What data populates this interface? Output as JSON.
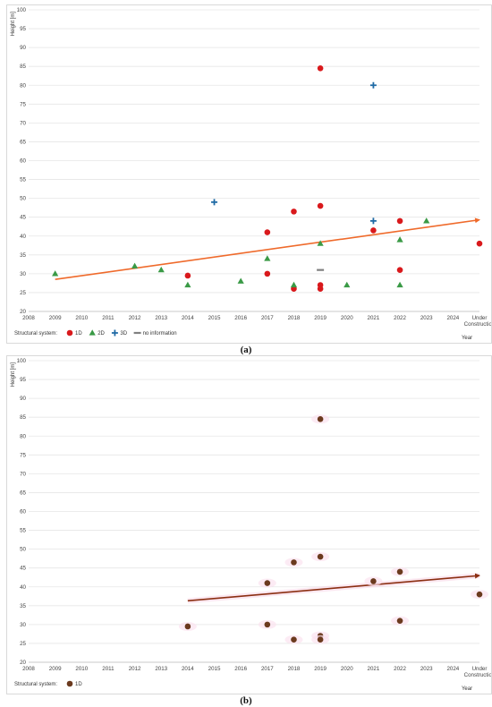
{
  "captions": [
    "(a)",
    "(b)"
  ],
  "colors": {
    "1D": "#d9191c",
    "2D": "#3a9a46",
    "3D": "#1f6aa5",
    "no information": "#808080",
    "trend_a": "#ef6a2b",
    "1D_b": "#6b3a1e",
    "trend_b": "#8b2f12",
    "grid": "#e6e6e6"
  },
  "chart_data": [
    {
      "type": "scatter",
      "panel": "a",
      "ylabel": "Height [m]",
      "xlabel": "Year",
      "categories": [
        "2008",
        "2009",
        "2010",
        "2011",
        "2012",
        "2013",
        "2014",
        "2015",
        "2016",
        "2017",
        "2018",
        "2019",
        "2020",
        "2021",
        "2022",
        "2023",
        "2024",
        "Under Construction"
      ],
      "ylim": [
        20,
        100
      ],
      "yticks": [
        20,
        25,
        30,
        35,
        40,
        45,
        50,
        55,
        60,
        65,
        70,
        75,
        80,
        85,
        90,
        95,
        100
      ],
      "legend_title": "Structural system:",
      "legend_placement": "bottom-left",
      "grid": true,
      "series": [
        {
          "name": "1D",
          "marker": "circle",
          "points": [
            [
              "2014",
              29.5
            ],
            [
              "2017",
              41
            ],
            [
              "2017",
              30
            ],
            [
              "2018",
              46.5
            ],
            [
              "2018",
              26
            ],
            [
              "2019",
              84.5
            ],
            [
              "2019",
              48
            ],
            [
              "2019",
              27
            ],
            [
              "2019",
              26
            ],
            [
              "2021",
              41.5
            ],
            [
              "2022",
              44
            ],
            [
              "2022",
              31
            ],
            [
              "Under Construction",
              38
            ]
          ]
        },
        {
          "name": "2D",
          "marker": "triangle",
          "points": [
            [
              "2009",
              30
            ],
            [
              "2012",
              32
            ],
            [
              "2013",
              31
            ],
            [
              "2014",
              27
            ],
            [
              "2016",
              28
            ],
            [
              "2017",
              34
            ],
            [
              "2018",
              27
            ],
            [
              "2019",
              38
            ],
            [
              "2020",
              27
            ],
            [
              "2022",
              39
            ],
            [
              "2022",
              27
            ],
            [
              "2023",
              44
            ]
          ]
        },
        {
          "name": "3D",
          "marker": "plus",
          "points": [
            [
              "2015",
              49
            ],
            [
              "2021",
              80
            ],
            [
              "2021",
              44
            ]
          ]
        },
        {
          "name": "no information",
          "marker": "dash",
          "points": [
            [
              "2019",
              31
            ]
          ]
        }
      ],
      "trend": {
        "from": [
          "2009",
          28.5
        ],
        "to": [
          "Under Construction",
          44.3
        ]
      }
    },
    {
      "type": "scatter",
      "panel": "b",
      "ylabel": "Height [m]",
      "xlabel": "Year",
      "categories": [
        "2008",
        "2009",
        "2010",
        "2011",
        "2012",
        "2013",
        "2014",
        "2015",
        "2016",
        "2017",
        "2018",
        "2019",
        "2020",
        "2021",
        "2022",
        "2023",
        "2024",
        "Under Construction"
      ],
      "ylim": [
        20,
        100
      ],
      "yticks": [
        20,
        25,
        30,
        35,
        40,
        45,
        50,
        55,
        60,
        65,
        70,
        75,
        80,
        85,
        90,
        95,
        100
      ],
      "legend_title": "Structural system:",
      "legend_placement": "bottom-left",
      "grid": true,
      "series": [
        {
          "name": "1D",
          "marker": "circle",
          "points": [
            [
              "2014",
              29.5
            ],
            [
              "2017",
              41
            ],
            [
              "2017",
              30
            ],
            [
              "2018",
              46.5
            ],
            [
              "2018",
              26
            ],
            [
              "2019",
              84.5
            ],
            [
              "2019",
              48
            ],
            [
              "2019",
              27
            ],
            [
              "2019",
              26
            ],
            [
              "2021",
              41.5
            ],
            [
              "2022",
              44
            ],
            [
              "2022",
              31
            ],
            [
              "Under Construction",
              38
            ]
          ]
        }
      ],
      "trend": {
        "from": [
          "2014",
          36.3
        ],
        "to": [
          "Under Construction",
          43
        ]
      }
    }
  ]
}
